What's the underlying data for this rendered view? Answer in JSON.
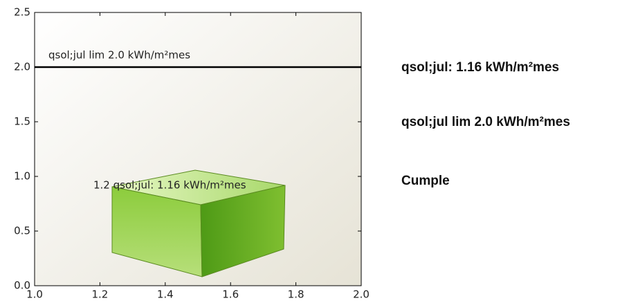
{
  "chart_data": {
    "type": "hline",
    "xlim": [
      1,
      2
    ],
    "ylim": [
      0,
      2.5
    ],
    "xticks": [
      {
        "value": 1,
        "label": "1.0"
      },
      1.2,
      1.4,
      1.6,
      1.8,
      {
        "value": 2,
        "label": "2.0"
      }
    ],
    "yticks": [
      {
        "value": 0,
        "label": "0.0"
      },
      0.5,
      {
        "value": 1,
        "label": "1.0"
      },
      1.5,
      {
        "value": 2,
        "label": "2.0"
      },
      2.5
    ],
    "hlines": [
      {
        "value": 2,
        "label": "qsol;jul lim 2.0 kWh/m²mes",
        "color": "#000000"
      }
    ],
    "annotation": "1.2 qsol;jul: 1.16 kWh/m²mes",
    "side_texts": [
      "qsol;jul: 1.16 kWh/m²mes",
      "qsol;jul lim 2.0 kWh/m²mes",
      "Cumple"
    ]
  }
}
